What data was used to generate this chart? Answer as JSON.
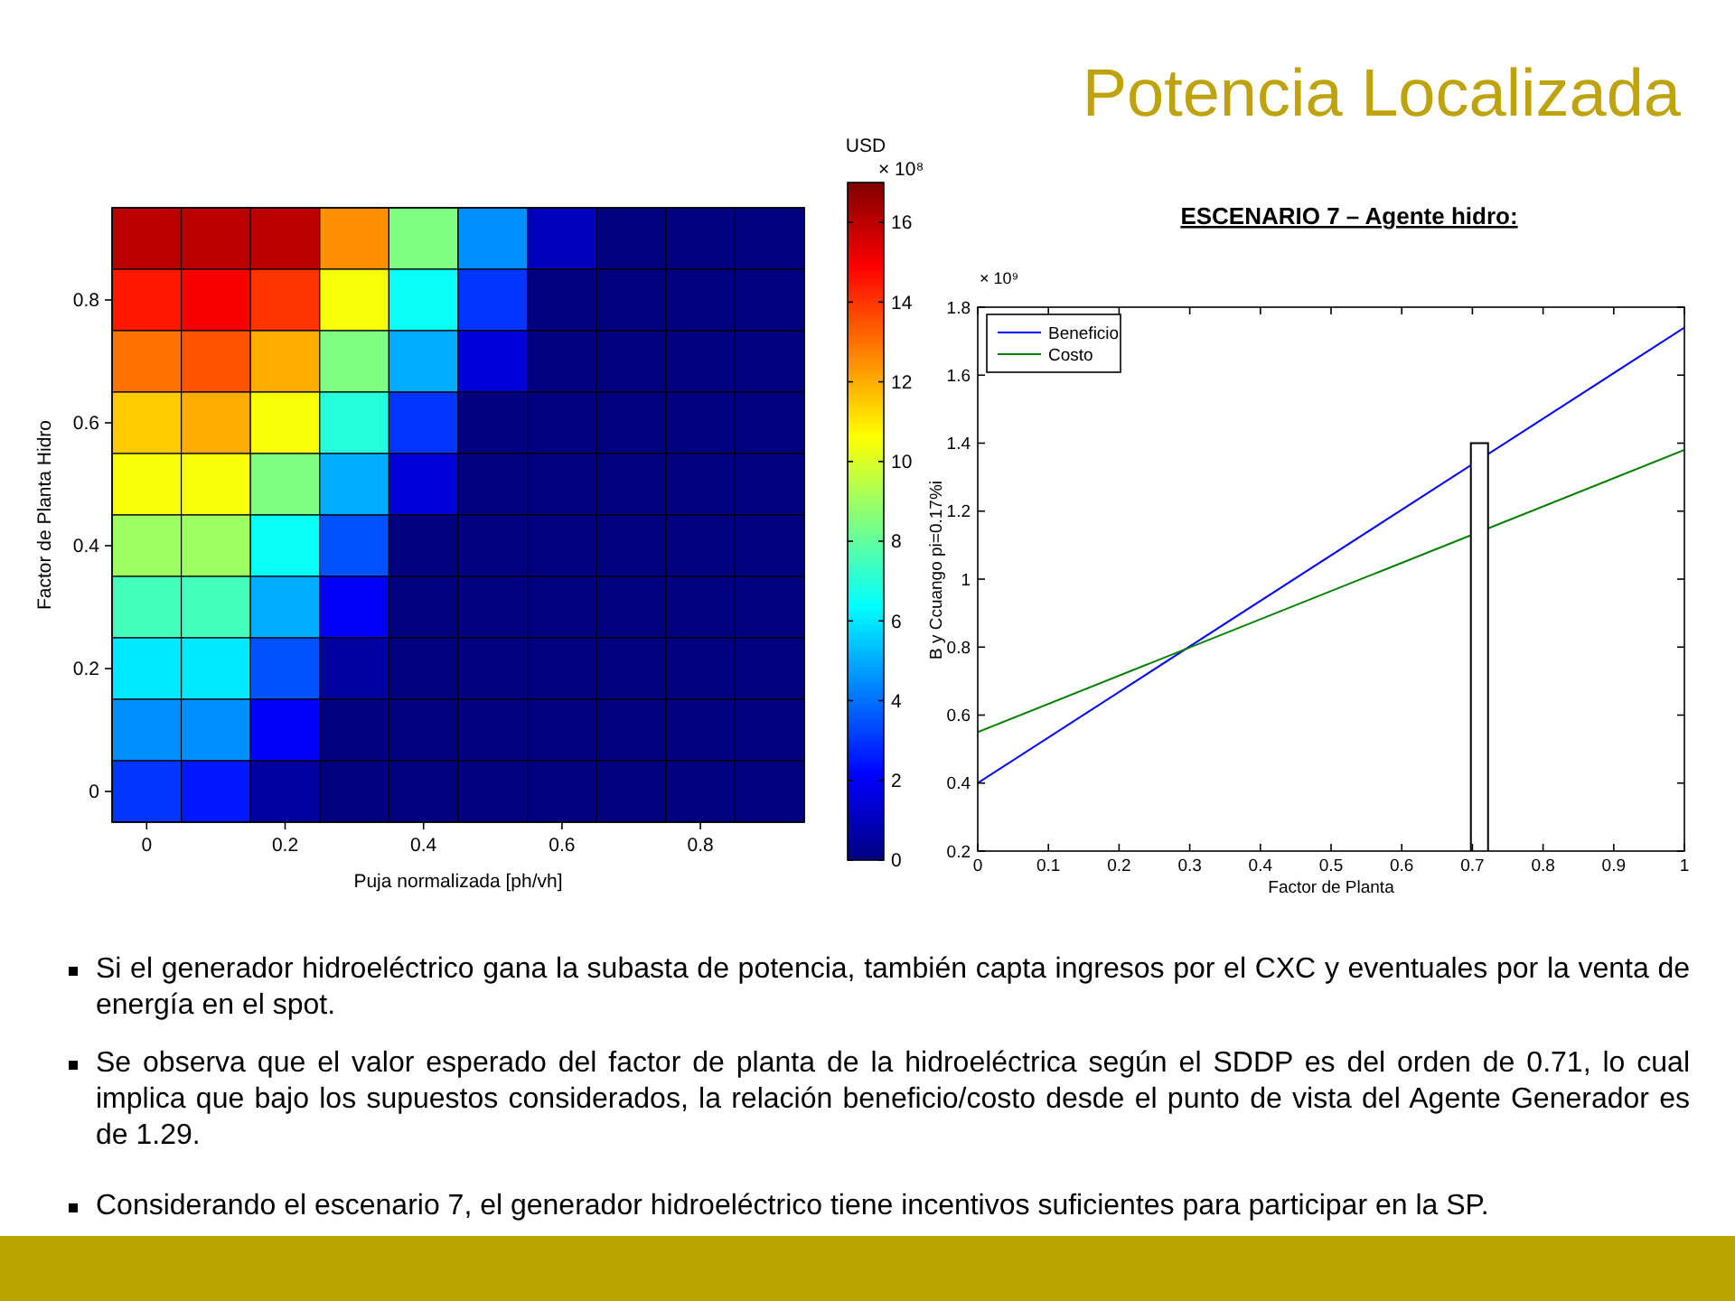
{
  "chart_data": [
    {
      "type": "heatmap",
      "xlabel": "Puja normalizada [ph/vh]",
      "ylabel": "Factor de Planta Hidro",
      "clabel": "USD",
      "annotations": [
        "× 10⁸"
      ],
      "categories": [
        "0",
        null,
        "0.2",
        null,
        "0.4",
        null,
        "0.6",
        null,
        "0.8",
        null
      ],
      "y_categories": [
        null,
        "0.8",
        null,
        "0.6",
        null,
        "0.4",
        null,
        "0.2",
        null,
        "0"
      ],
      "cells": [
        [
          16,
          16,
          16,
          12.5,
          8.5,
          4.5,
          1,
          0,
          0,
          0
        ],
        [
          14.5,
          15,
          14,
          10.5,
          6.5,
          3,
          0,
          0,
          0,
          0
        ],
        [
          13,
          13.5,
          12,
          8.5,
          5,
          1.5,
          0,
          0,
          0,
          0
        ],
        [
          11.5,
          12,
          10.5,
          7,
          3,
          0,
          0,
          0,
          0,
          0
        ],
        [
          10.5,
          10.5,
          8.5,
          5,
          1.5,
          0,
          0,
          0,
          0,
          0
        ],
        [
          9,
          9,
          6.5,
          3.5,
          0,
          0,
          0,
          0,
          0,
          0
        ],
        [
          7.5,
          7.5,
          5,
          2,
          0,
          0,
          0,
          0,
          0,
          0
        ],
        [
          6,
          6,
          3.5,
          0.5,
          0,
          0,
          0,
          0,
          0,
          0
        ],
        [
          4.5,
          4.5,
          2,
          0,
          0,
          0,
          0,
          0,
          0,
          0
        ],
        [
          3,
          2.5,
          0.5,
          0,
          0,
          0,
          0,
          0,
          0,
          0
        ]
      ],
      "clim": [
        0,
        17
      ],
      "cticks": [
        0,
        2,
        4,
        6,
        8,
        10,
        12,
        14,
        16
      ]
    },
    {
      "type": "line",
      "title": "ESCENARIO 7 – Agente hidro:",
      "xlabel": "Factor de Planta",
      "ylabel": "B y Ccuango pi=0.17%i",
      "annotations": [
        "× 10⁹"
      ],
      "x": [
        0,
        1
      ],
      "series": [
        {
          "name": "Beneficio",
          "color": "#0000ff",
          "values": [
            0.4,
            1.74
          ]
        },
        {
          "name": "Costo",
          "color": "#008000",
          "values": [
            0.55,
            1.38
          ]
        },
        {
          "type": "bar",
          "x": [
            0.71
          ],
          "values": [
            1.4
          ],
          "color": "#ffffff"
        }
      ],
      "xlim": [
        0,
        1
      ],
      "xticks": [
        0,
        0.1,
        0.2,
        0.3,
        0.4,
        0.5,
        0.6,
        0.7,
        0.8,
        0.9,
        1
      ],
      "ylim": [
        0.2,
        1.8
      ],
      "yticks": [
        0.2,
        0.4,
        0.6,
        0.8,
        1,
        1.2,
        1.4,
        1.6,
        1.8
      ],
      "legend": "top left"
    },
    {
      "type": "other",
      "title": "Potencia Localizada",
      "annotations": [
        "Si el generador hidroeléctrico gana la subasta de potencia, también capta ingresos por el CXC y eventuales por la venta de energía en el spot.",
        "Se observa que el valor esperado del factor de planta de la hidroeléctrica según el SDDP es del orden de 0.71, lo cual implica que bajo los supuestos considerados, la relación beneficio/costo desde el punto de vista del Agente Generador es de 1.29.",
        "Considerando el escenario 7, el generador hidroeléctrico tiene incentivos suficientes para participar en la SP."
      ]
    }
  ]
}
